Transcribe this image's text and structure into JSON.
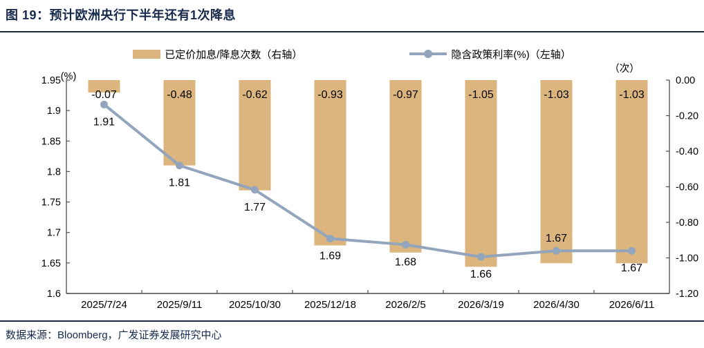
{
  "figure": {
    "title": "图 19：预计欧洲央行下半年还有1次降息",
    "source": "数据来源：Bloomberg，广发证券发展研究中心"
  },
  "legend": [
    {
      "type": "bar",
      "label": "已定价加息/降息次数（右轴）"
    },
    {
      "type": "line",
      "label": "隐含政策利率(%)（左轴）"
    }
  ],
  "colors": {
    "bar": "#dbb57d",
    "line": "#92a5bc",
    "title": "#17294d",
    "axis": "#4d4d4d",
    "data_label": "#000000"
  },
  "chart_data": {
    "type": "bar+line",
    "categories": [
      "2025/7/24",
      "2025/9/11",
      "2025/10/30",
      "2025/12/18",
      "2026/2/5",
      "2026/3/19",
      "2026/4/30",
      "2026/6/11"
    ],
    "series": [
      {
        "name": "已定价加息/降息次数（右轴）",
        "type": "bar",
        "axis": "right",
        "values": [
          -0.07,
          -0.48,
          -0.62,
          -0.93,
          -0.97,
          -1.05,
          -1.03,
          -1.03
        ],
        "labels": [
          "-0.07",
          "-0.48",
          "-0.62",
          "-0.93",
          "-0.97",
          "-1.05",
          "-1.03",
          "-1.03"
        ]
      },
      {
        "name": "隐含政策利率(%)（左轴）",
        "type": "line",
        "axis": "left",
        "values": [
          1.91,
          1.81,
          1.77,
          1.69,
          1.68,
          1.66,
          1.67,
          1.67
        ],
        "labels": [
          "1.91",
          "1.81",
          "1.77",
          "1.69",
          "1.68",
          "1.66",
          "1.67",
          "1.67"
        ],
        "label_pos": [
          "below",
          "below",
          "below",
          "below",
          "below",
          "below",
          "above",
          "below"
        ]
      }
    ],
    "left_axis": {
      "title": "(%)",
      "min": 1.6,
      "max": 1.95,
      "ticks": [
        "1.95",
        "1.9",
        "1.85",
        "1.8",
        "1.75",
        "1.7",
        "1.65",
        "1.6"
      ]
    },
    "right_axis": {
      "title": "（次）",
      "min": -1.2,
      "max": 0,
      "ticks": [
        "0.00",
        "-0.20",
        "-0.40",
        "-0.60",
        "-0.80",
        "-1.00",
        "-1.20"
      ]
    },
    "grid": false,
    "legend_position": "top"
  }
}
